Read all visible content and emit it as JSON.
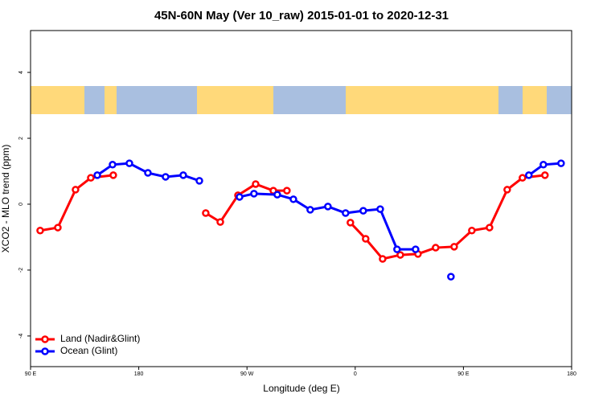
{
  "chart_data": {
    "type": "line",
    "title": "45N-60N May (Ver 10_raw)   2015-01-01 to 2020-12-31",
    "x_label": "Longitude (deg E)",
    "y_label": "XCO2 - MLO trend (ppm)",
    "xlim": [
      90,
      540
    ],
    "ylim": [
      -4.93,
      5.27
    ],
    "xticks": [
      {
        "value": 90,
        "label": "90 E"
      },
      {
        "value": 180,
        "label": "180"
      },
      {
        "value": 270,
        "label": "90 W"
      },
      {
        "value": 360,
        "label": "0"
      },
      {
        "value": 450,
        "label": "90 E"
      },
      {
        "value": 540,
        "label": "180"
      }
    ],
    "yticks": [
      4,
      2,
      0,
      -2,
      -4
    ],
    "legend": "bottom-left",
    "series": [
      {
        "name": "Land (Nadir&Glint)",
        "color": "#ff0000",
        "x": [
          98.0,
          112.7,
          127.4,
          140.1,
          158.8,
          null,
          235.7,
          247.8,
          262.5,
          277.2,
          291.9,
          303.2,
          null,
          356.0,
          368.7,
          382.8,
          397.5,
          412.2,
          426.9,
          442.3,
          457.0,
          471.7,
          486.4,
          499.1,
          517.8
        ],
        "values": [
          -0.8,
          -0.71,
          0.44,
          0.8,
          0.88,
          null,
          -0.27,
          -0.54,
          0.27,
          0.61,
          0.41,
          0.41,
          null,
          -0.56,
          -1.05,
          -1.66,
          -1.54,
          -1.51,
          -1.32,
          -1.29,
          -0.8,
          -0.71,
          0.44,
          0.8,
          0.88
        ]
      },
      {
        "name": "Ocean (Glint)",
        "color": "#0000ff",
        "x": [
          145.5,
          158.2,
          172.2,
          187.6,
          202.3,
          217.0,
          230.4,
          null,
          263.8,
          275.8,
          295.2,
          308.6,
          322.6,
          337.3,
          352.0,
          366.7,
          380.8,
          394.8,
          410.2,
          null,
          439.6,
          null,
          504.4,
          516.5,
          531.2
        ],
        "values": [
          0.88,
          1.2,
          1.24,
          0.95,
          0.83,
          0.88,
          0.71,
          null,
          0.22,
          0.32,
          0.29,
          0.15,
          -0.17,
          -0.07,
          -0.27,
          -0.2,
          -0.15,
          -1.37,
          -1.37,
          null,
          -2.2,
          null,
          0.88,
          1.2,
          1.24
        ]
      }
    ]
  }
}
